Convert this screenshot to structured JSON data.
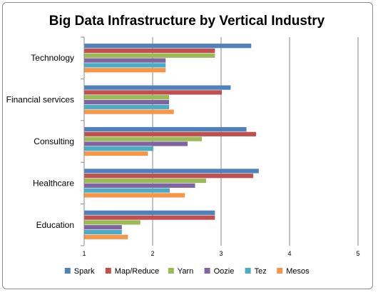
{
  "chart_data": {
    "type": "bar",
    "orientation": "horizontal",
    "title": "Big Data Infrastructure by Vertical Industry",
    "xlabel": "",
    "ylabel": "",
    "xlim": [
      1,
      5
    ],
    "ticks": [
      "1",
      "2",
      "3",
      "4",
      "5"
    ],
    "grid": true,
    "legend_position": "bottom",
    "categories": [
      "Technology",
      "Financial services",
      "Consulting",
      "Healthcare",
      "Education"
    ],
    "series": [
      {
        "name": "Spark",
        "color": "#4f81bd",
        "values": [
          3.44,
          3.14,
          3.37,
          3.55,
          2.91
        ]
      },
      {
        "name": "Map/Reduce",
        "color": "#c0504d",
        "values": [
          2.91,
          3.01,
          3.51,
          3.47,
          2.91
        ]
      },
      {
        "name": "Yarn",
        "color": "#9bbb59",
        "values": [
          2.91,
          2.24,
          2.72,
          2.78,
          1.82
        ]
      },
      {
        "name": "Oozie",
        "color": "#8064a2",
        "values": [
          2.19,
          2.24,
          2.51,
          2.62,
          1.55
        ]
      },
      {
        "name": "Tez",
        "color": "#4bacc6",
        "values": [
          2.19,
          2.24,
          2.01,
          2.25,
          1.55
        ]
      },
      {
        "name": "Mesos",
        "color": "#f79646",
        "values": [
          2.19,
          2.31,
          1.93,
          2.47,
          1.64
        ]
      }
    ]
  }
}
